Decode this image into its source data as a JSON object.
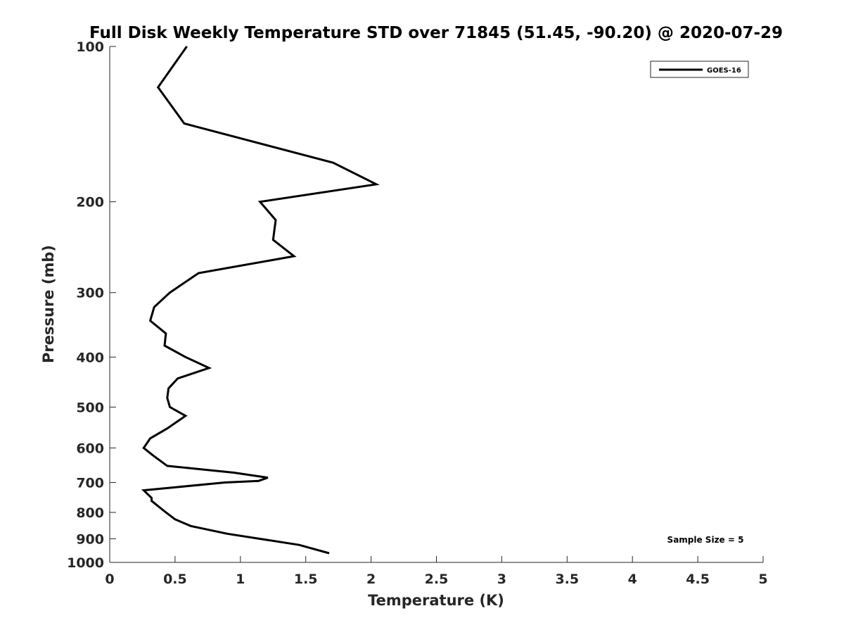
{
  "chart_data": {
    "type": "line",
    "title": "Full Disk Weekly Temperature STD over 71845 (51.45, -90.20) @ 2020-07-29",
    "xlabel": "Temperature (K)",
    "ylabel": "Pressure (mb)",
    "xlim": [
      0,
      5
    ],
    "ylim": [
      1000,
      100
    ],
    "y_scale": "log",
    "y_direction": "reversed",
    "xticks": [
      0,
      0.5,
      1,
      1.5,
      2,
      2.5,
      3,
      3.5,
      4,
      4.5,
      5
    ],
    "xtick_labels": [
      "0",
      "0.5",
      "1",
      "1.5",
      "2",
      "2.5",
      "3",
      "3.5",
      "4",
      "4.5",
      "5"
    ],
    "yticks": [
      100,
      200,
      300,
      400,
      500,
      600,
      700,
      800,
      900,
      1000
    ],
    "ytick_labels": [
      "100",
      "200",
      "300",
      "400",
      "500",
      "600",
      "700",
      "800",
      "900",
      "1000"
    ],
    "grid": false,
    "legend_position": "top-right",
    "series": [
      {
        "name": "GOES-16",
        "color": "#000000",
        "x": [
          0.59,
          0.37,
          0.57,
          1.71,
          2.04,
          1.15,
          1.27,
          1.25,
          1.41,
          0.68,
          0.46,
          0.34,
          0.31,
          0.43,
          0.42,
          0.58,
          0.76,
          0.52,
          0.45,
          0.44,
          0.46,
          0.58,
          0.44,
          0.31,
          0.26,
          0.33,
          0.44,
          0.95,
          1.21,
          1.14,
          0.88,
          0.26,
          0.32,
          0.32,
          0.43,
          0.5,
          0.62,
          0.9,
          1.45,
          1.68
        ],
        "y": [
          100,
          120,
          141,
          168,
          185,
          200,
          217,
          237,
          255,
          275,
          300,
          320,
          340,
          360,
          380,
          400,
          420,
          440,
          460,
          480,
          500,
          520,
          550,
          575,
          600,
          620,
          650,
          670,
          685,
          695,
          700,
          725,
          750,
          760,
          800,
          825,
          850,
          880,
          925,
          960
        ]
      }
    ],
    "annotations": [
      {
        "text": "Sample Size = 5",
        "position": "bottom-right"
      }
    ]
  }
}
